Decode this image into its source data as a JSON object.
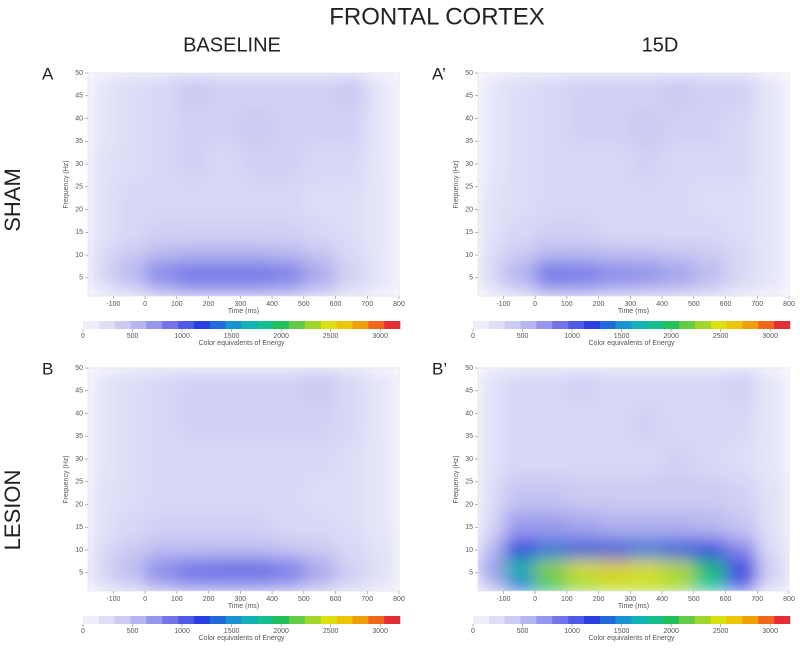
{
  "title": "FRONTAL CORTEX",
  "columns": [
    "BASELINE",
    "15D"
  ],
  "rows": [
    "SHAM",
    "LESION"
  ],
  "colorscale": [
    [
      0,
      "#f6f6fd"
    ],
    [
      300,
      "#d8d8f6"
    ],
    [
      600,
      "#b0b0ee"
    ],
    [
      900,
      "#7070e8"
    ],
    [
      1200,
      "#2b3ee0"
    ],
    [
      1500,
      "#1a8fd4"
    ],
    [
      1750,
      "#10bfae"
    ],
    [
      2000,
      "#22c05a"
    ],
    [
      2250,
      "#86d23a"
    ],
    [
      2500,
      "#e2e20a"
    ],
    [
      2750,
      "#f2b000"
    ],
    [
      3000,
      "#ef5a1e"
    ],
    [
      3200,
      "#dc0f44"
    ]
  ],
  "chart_data": [
    {
      "type": "heatmap",
      "label": "A",
      "xlabel": "Time (ms)",
      "ylabel": "Frequency (Hz)",
      "x": [
        -150,
        -50,
        50,
        150,
        250,
        350,
        450,
        550,
        650,
        750
      ],
      "y": [
        3,
        6,
        10,
        15,
        22,
        30,
        38,
        46
      ],
      "z": [
        [
          200,
          350,
          600,
          700,
          700,
          700,
          650,
          500,
          300,
          150
        ],
        [
          300,
          550,
          850,
          950,
          950,
          950,
          900,
          650,
          350,
          150
        ],
        [
          250,
          400,
          550,
          600,
          600,
          600,
          550,
          450,
          300,
          150
        ],
        [
          200,
          300,
          350,
          350,
          350,
          350,
          350,
          300,
          250,
          150
        ],
        [
          200,
          300,
          300,
          300,
          300,
          300,
          300,
          250,
          250,
          150
        ],
        [
          200,
          250,
          300,
          350,
          300,
          350,
          350,
          300,
          300,
          150
        ],
        [
          150,
          250,
          300,
          350,
          350,
          400,
          350,
          350,
          350,
          150
        ],
        [
          150,
          250,
          300,
          400,
          350,
          350,
          350,
          350,
          400,
          150
        ]
      ],
      "xlim": [
        -180,
        800
      ],
      "ylim": [
        1,
        50
      ],
      "xticks": [
        -100,
        0,
        100,
        200,
        300,
        400,
        500,
        600,
        700,
        800
      ],
      "yticks": [
        5,
        10,
        15,
        20,
        25,
        30,
        35,
        40,
        45,
        50
      ],
      "colorbar": {
        "label": "Color equivalents of Energy",
        "lim": [
          0,
          3200
        ],
        "ticks": [
          0,
          500,
          1000,
          1500,
          2000,
          2500,
          3000
        ]
      }
    },
    {
      "type": "heatmap",
      "label": "A’",
      "xlabel": "Time (ms)",
      "ylabel": "Frequency (Hz)",
      "x": [
        -150,
        -50,
        50,
        150,
        250,
        350,
        450,
        550,
        650,
        750
      ],
      "y": [
        3,
        6,
        10,
        15,
        22,
        30,
        38,
        46
      ],
      "z": [
        [
          200,
          400,
          650,
          650,
          600,
          550,
          500,
          400,
          250,
          150
        ],
        [
          300,
          600,
          1000,
          950,
          850,
          800,
          700,
          550,
          300,
          150
        ],
        [
          250,
          400,
          550,
          550,
          500,
          500,
          450,
          400,
          300,
          150
        ],
        [
          200,
          300,
          350,
          350,
          300,
          300,
          300,
          300,
          250,
          150
        ],
        [
          200,
          250,
          300,
          300,
          300,
          300,
          300,
          250,
          250,
          150
        ],
        [
          150,
          250,
          300,
          300,
          300,
          350,
          300,
          300,
          300,
          150
        ],
        [
          150,
          250,
          300,
          350,
          350,
          400,
          350,
          350,
          300,
          150
        ],
        [
          150,
          250,
          300,
          350,
          350,
          350,
          400,
          350,
          350,
          150
        ]
      ],
      "xlim": [
        -180,
        800
      ],
      "ylim": [
        1,
        50
      ],
      "xticks": [
        -100,
        0,
        100,
        200,
        300,
        400,
        500,
        600,
        700,
        800
      ],
      "yticks": [
        5,
        10,
        15,
        20,
        25,
        30,
        35,
        40,
        45,
        50
      ],
      "colorbar": {
        "label": "Color equivalents of Energy",
        "lim": [
          0,
          3200
        ],
        "ticks": [
          0,
          500,
          1000,
          1500,
          2000,
          2500,
          3000
        ]
      }
    },
    {
      "type": "heatmap",
      "label": "B",
      "xlabel": "Time (ms)",
      "ylabel": "Frequency (Hz)",
      "x": [
        -150,
        -50,
        50,
        150,
        250,
        350,
        450,
        550,
        650,
        750
      ],
      "y": [
        3,
        6,
        10,
        15,
        22,
        30,
        38,
        46
      ],
      "z": [
        [
          250,
          400,
          650,
          750,
          750,
          750,
          700,
          550,
          350,
          200
        ],
        [
          300,
          500,
          800,
          950,
          1000,
          1000,
          900,
          650,
          350,
          200
        ],
        [
          250,
          400,
          500,
          500,
          500,
          500,
          450,
          400,
          300,
          200
        ],
        [
          200,
          300,
          350,
          350,
          350,
          350,
          300,
          300,
          250,
          150
        ],
        [
          200,
          250,
          300,
          300,
          300,
          300,
          300,
          250,
          250,
          150
        ],
        [
          150,
          250,
          300,
          300,
          300,
          300,
          300,
          300,
          250,
          150
        ],
        [
          150,
          250,
          300,
          350,
          350,
          350,
          350,
          350,
          300,
          150
        ],
        [
          150,
          250,
          300,
          350,
          350,
          350,
          350,
          400,
          300,
          150
        ]
      ],
      "xlim": [
        -180,
        800
      ],
      "ylim": [
        1,
        50
      ],
      "xticks": [
        -100,
        0,
        100,
        200,
        300,
        400,
        500,
        600,
        700,
        800
      ],
      "yticks": [
        5,
        10,
        15,
        20,
        25,
        30,
        35,
        40,
        45,
        50
      ],
      "colorbar": {
        "label": "Color equivalents of Energy",
        "lim": [
          0,
          3200
        ],
        "ticks": [
          0,
          500,
          1000,
          1500,
          2000,
          2500,
          3000
        ]
      }
    },
    {
      "type": "heatmap",
      "label": "B’",
      "xlabel": "Time (ms)",
      "ylabel": "Frequency (Hz)",
      "x": [
        -150,
        -50,
        50,
        150,
        250,
        350,
        450,
        550,
        650,
        750
      ],
      "y": [
        3,
        6,
        10,
        15,
        22,
        30,
        38,
        46
      ],
      "z": [
        [
          500,
          1400,
          2000,
          2300,
          2400,
          2400,
          2300,
          1800,
          1000,
          300
        ],
        [
          700,
          1800,
          2300,
          2500,
          2600,
          2500,
          2400,
          2000,
          1200,
          350
        ],
        [
          500,
          1200,
          1400,
          1300,
          1300,
          1400,
          1300,
          1200,
          800,
          250
        ],
        [
          300,
          700,
          700,
          650,
          600,
          600,
          600,
          550,
          450,
          200
        ],
        [
          250,
          450,
          450,
          400,
          400,
          400,
          400,
          400,
          350,
          200
        ],
        [
          200,
          300,
          300,
          300,
          300,
          300,
          350,
          300,
          250,
          150
        ],
        [
          200,
          300,
          300,
          300,
          300,
          350,
          300,
          300,
          300,
          150
        ],
        [
          200,
          300,
          300,
          350,
          300,
          300,
          300,
          300,
          350,
          150
        ]
      ],
      "xlim": [
        -180,
        800
      ],
      "ylim": [
        1,
        50
      ],
      "xticks": [
        -100,
        0,
        100,
        200,
        300,
        400,
        500,
        600,
        700,
        800
      ],
      "yticks": [
        5,
        10,
        15,
        20,
        25,
        30,
        35,
        40,
        45,
        50
      ],
      "colorbar": {
        "label": "Color equivalents of Energy",
        "lim": [
          0,
          3200
        ],
        "ticks": [
          0,
          500,
          1000,
          1500,
          2000,
          2500,
          3000
        ]
      }
    }
  ]
}
